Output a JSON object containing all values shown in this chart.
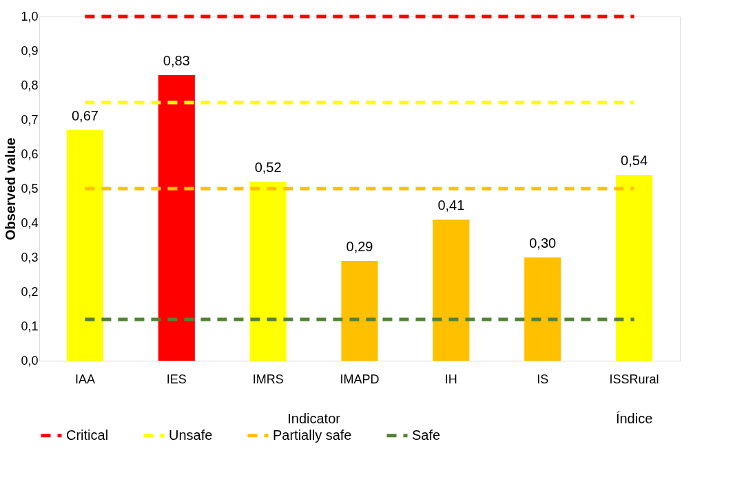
{
  "chart_data": {
    "type": "bar",
    "ylabel": "Observed value",
    "categories": [
      "IAA",
      "IES",
      "IMRS",
      "IMAPD",
      "IH",
      "IS",
      "ISSRural"
    ],
    "values": [
      0.67,
      0.83,
      0.52,
      0.29,
      0.41,
      0.3,
      0.54
    ],
    "colors": [
      "#ffff00",
      "#ff0000",
      "#ffff00",
      "#ffc000",
      "#ffc000",
      "#ffc000",
      "#ffff00"
    ],
    "value_labels": [
      "0,67",
      "0,83",
      "0,52",
      "0,29",
      "0,41",
      "0,30",
      "0,54"
    ],
    "ylim": [
      0,
      1
    ],
    "yticks": [
      {
        "value": 0,
        "label": "0,0"
      },
      {
        "value": 0.1,
        "label": "0,1"
      },
      {
        "value": 0.2,
        "label": "0,2"
      },
      {
        "value": 0.3,
        "label": "0,3"
      },
      {
        "value": 0.4,
        "label": "0,4"
      },
      {
        "value": 0.5,
        "label": "0,5"
      },
      {
        "value": 0.6,
        "label": "0,6"
      },
      {
        "value": 0.7,
        "label": "0,7"
      },
      {
        "value": 0.8,
        "label": "0,8"
      },
      {
        "value": 0.9,
        "label": "0,9"
      },
      {
        "value": 1,
        "label": "1,0"
      }
    ],
    "ref_lines": [
      {
        "axis": "y",
        "value": 1.0,
        "label": "Critical",
        "color": "#ff0000",
        "line_style": "dashed"
      },
      {
        "axis": "y",
        "value": 0.75,
        "label": "Unsafe",
        "color": "#ffff00",
        "line_style": "dashed"
      },
      {
        "axis": "y",
        "value": 0.5,
        "label": "Partially safe",
        "color": "#ffc000",
        "line_style": "dashed"
      },
      {
        "axis": "y",
        "value": 0.12,
        "label": "Safe",
        "color": "#548235",
        "line_style": "dashed"
      }
    ],
    "annotations": [
      "Indicator",
      "Índice"
    ],
    "grid": false,
    "legend": "bottom"
  }
}
